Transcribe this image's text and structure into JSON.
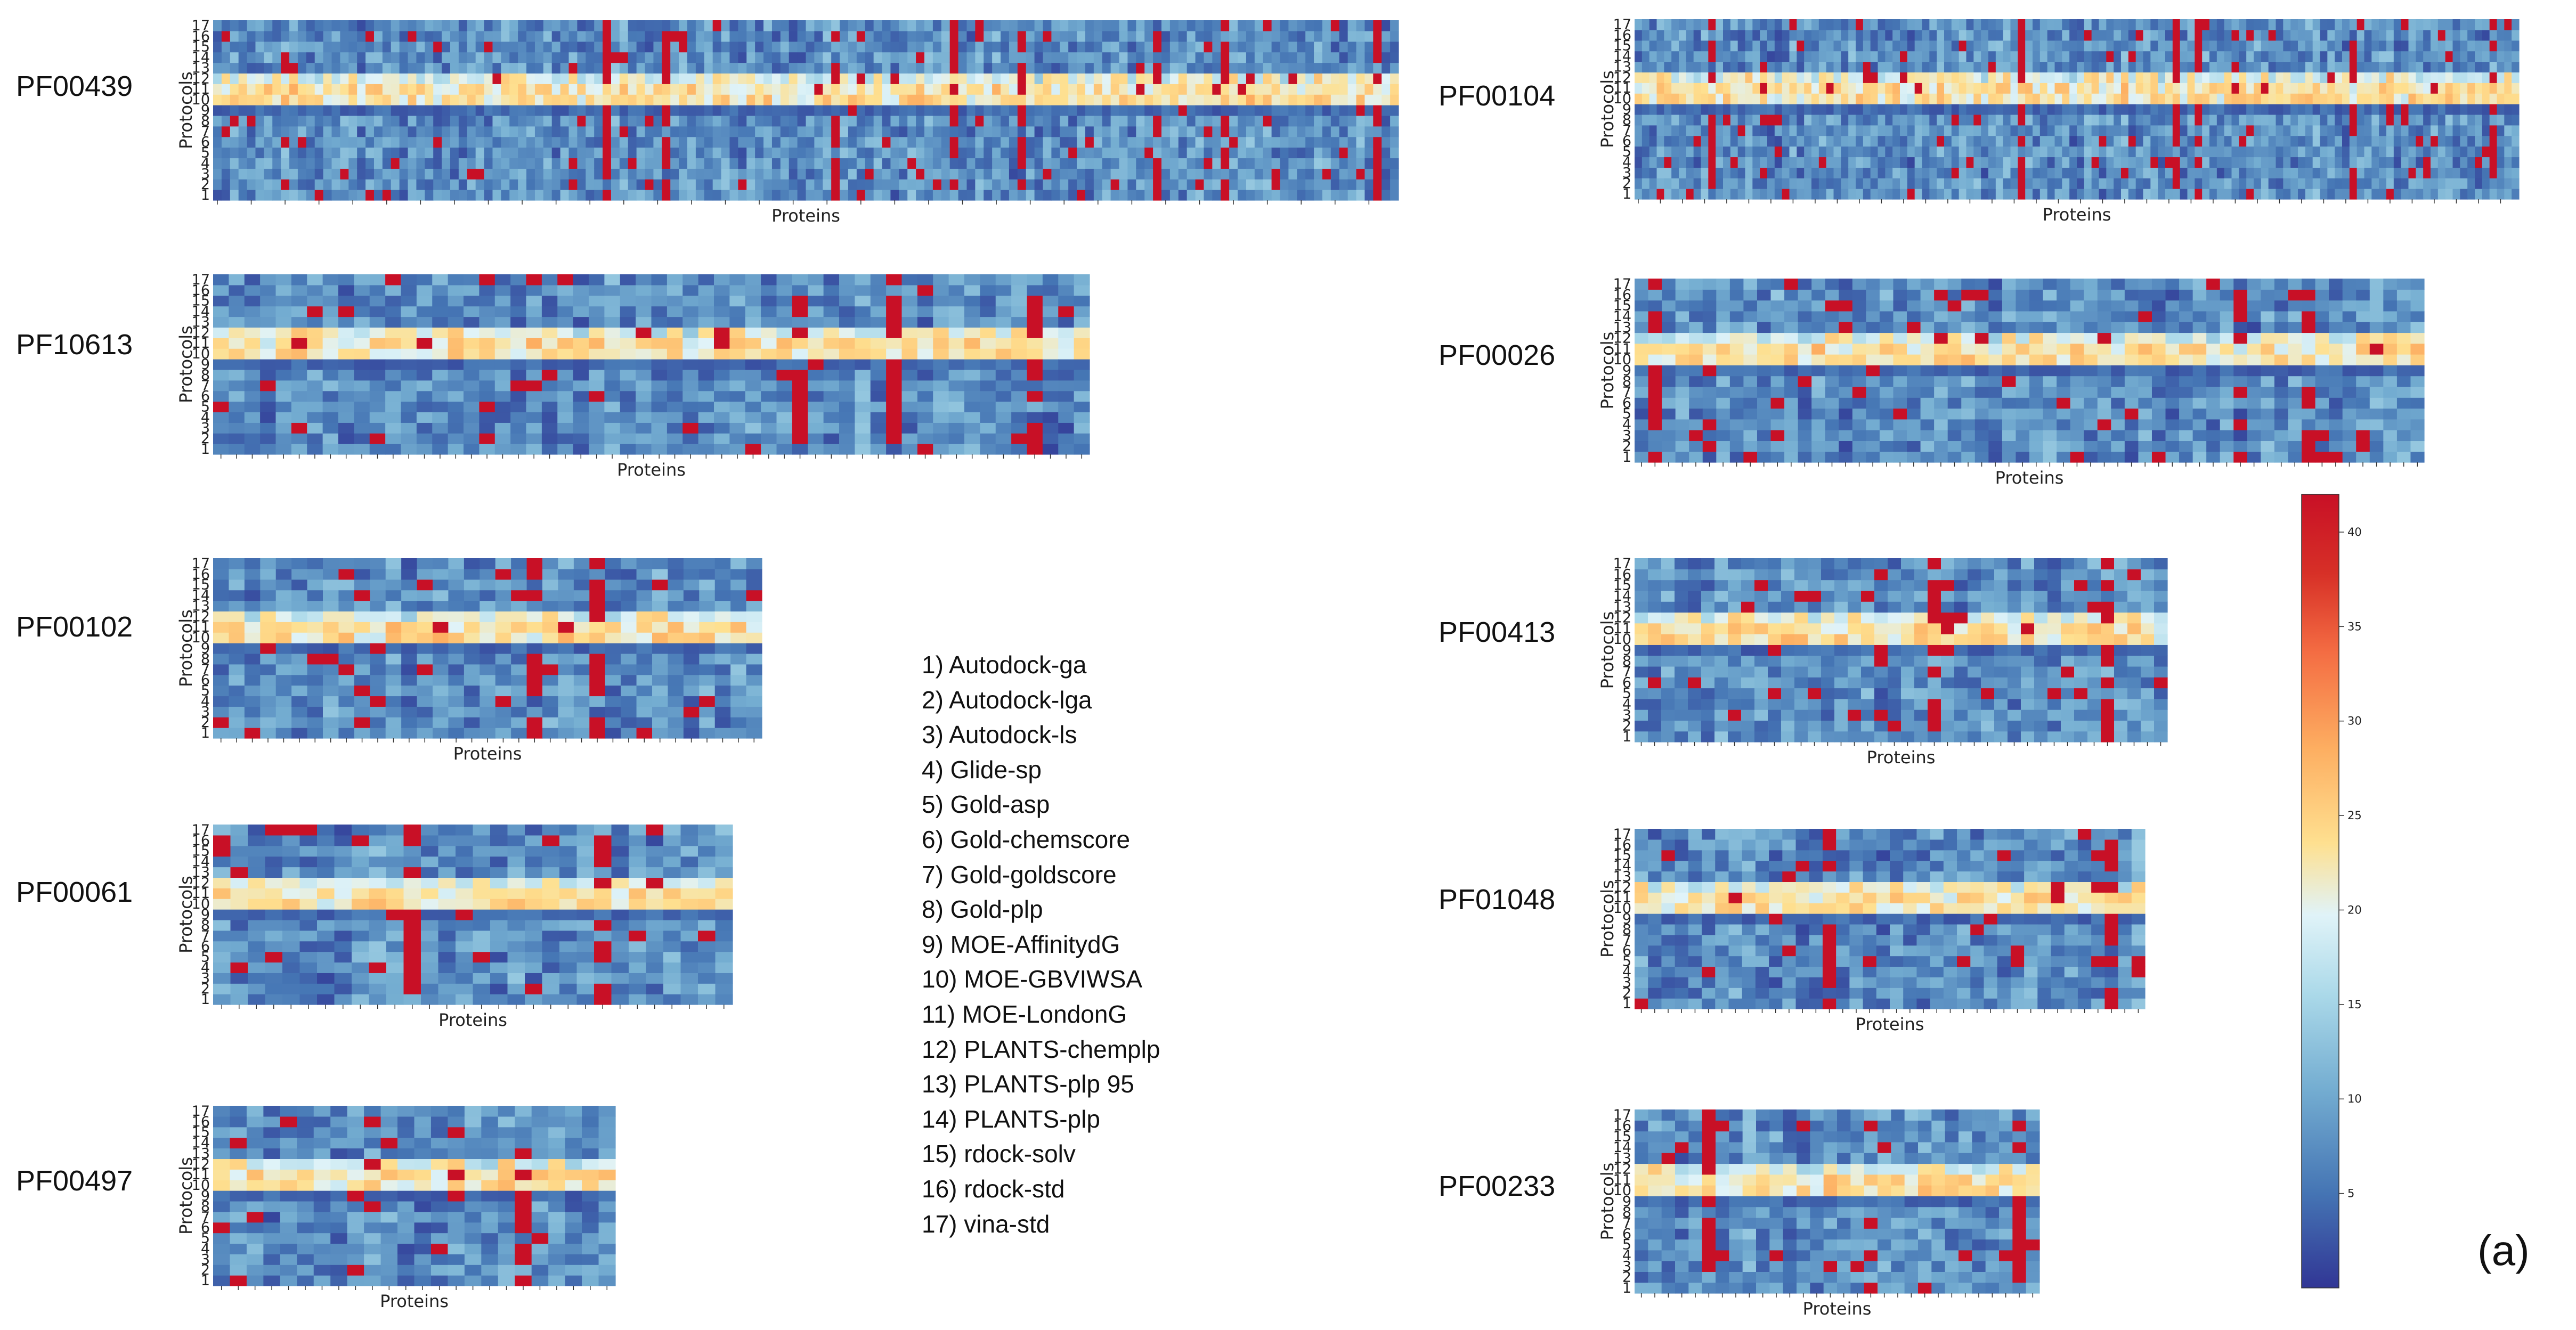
{
  "figure_label": "(a)",
  "panels": [
    {
      "name": "PF00439",
      "n_proteins": 140
    },
    {
      "name": "PF10613",
      "n_proteins": 56
    },
    {
      "name": "PF00102",
      "n_proteins": 35
    },
    {
      "name": "PF00061",
      "n_proteins": 30
    },
    {
      "name": "PF00497",
      "n_proteins": 24
    },
    {
      "name": "PF00104",
      "n_proteins": 120
    },
    {
      "name": "PF00026",
      "n_proteins": 58
    },
    {
      "name": "PF00413",
      "n_proteins": 40
    },
    {
      "name": "PF01048",
      "n_proteins": 38
    },
    {
      "name": "PF00233",
      "n_proteins": 30
    }
  ],
  "protocols": [
    "1) Autodock-ga",
    "2) Autodock-lga",
    "3) Autodock-ls",
    "4) Glide-sp",
    "5) Gold-asp",
    "6) Gold-chemscore",
    "7) Gold-goldscore",
    "8) Gold-plp",
    "9) MOE-AffinitydG",
    "10) MOE-GBVIWSA",
    "11) MOE-LondonG",
    "12) PLANTS-chemplp",
    "13) PLANTS-plp 95",
    "14) PLANTS-plp",
    "15) rdock-solv",
    "16) rdock-std",
    "17) vina-std"
  ],
  "chart_data": {
    "type": "heatmap",
    "xlabel": "Proteins",
    "ylabel": "Protocols",
    "y_tick_labels": [
      "1",
      "2",
      "3",
      "4",
      "5",
      "6",
      "7",
      "8",
      "9",
      "10",
      "11",
      "12",
      "13",
      "14",
      "15",
      "16",
      "17"
    ],
    "colorbar": {
      "colormap": "RdYlBu_r",
      "range": [
        0,
        42
      ],
      "ticks": [
        5,
        10,
        15,
        20,
        25,
        30,
        35,
        40
      ]
    },
    "note": "Cell values are approximate; the bands for protocols 10-12 (MOE) are consistently high (~20-30), other protocols mostly low (~1-10) with scattered saturated cells (~42)."
  }
}
